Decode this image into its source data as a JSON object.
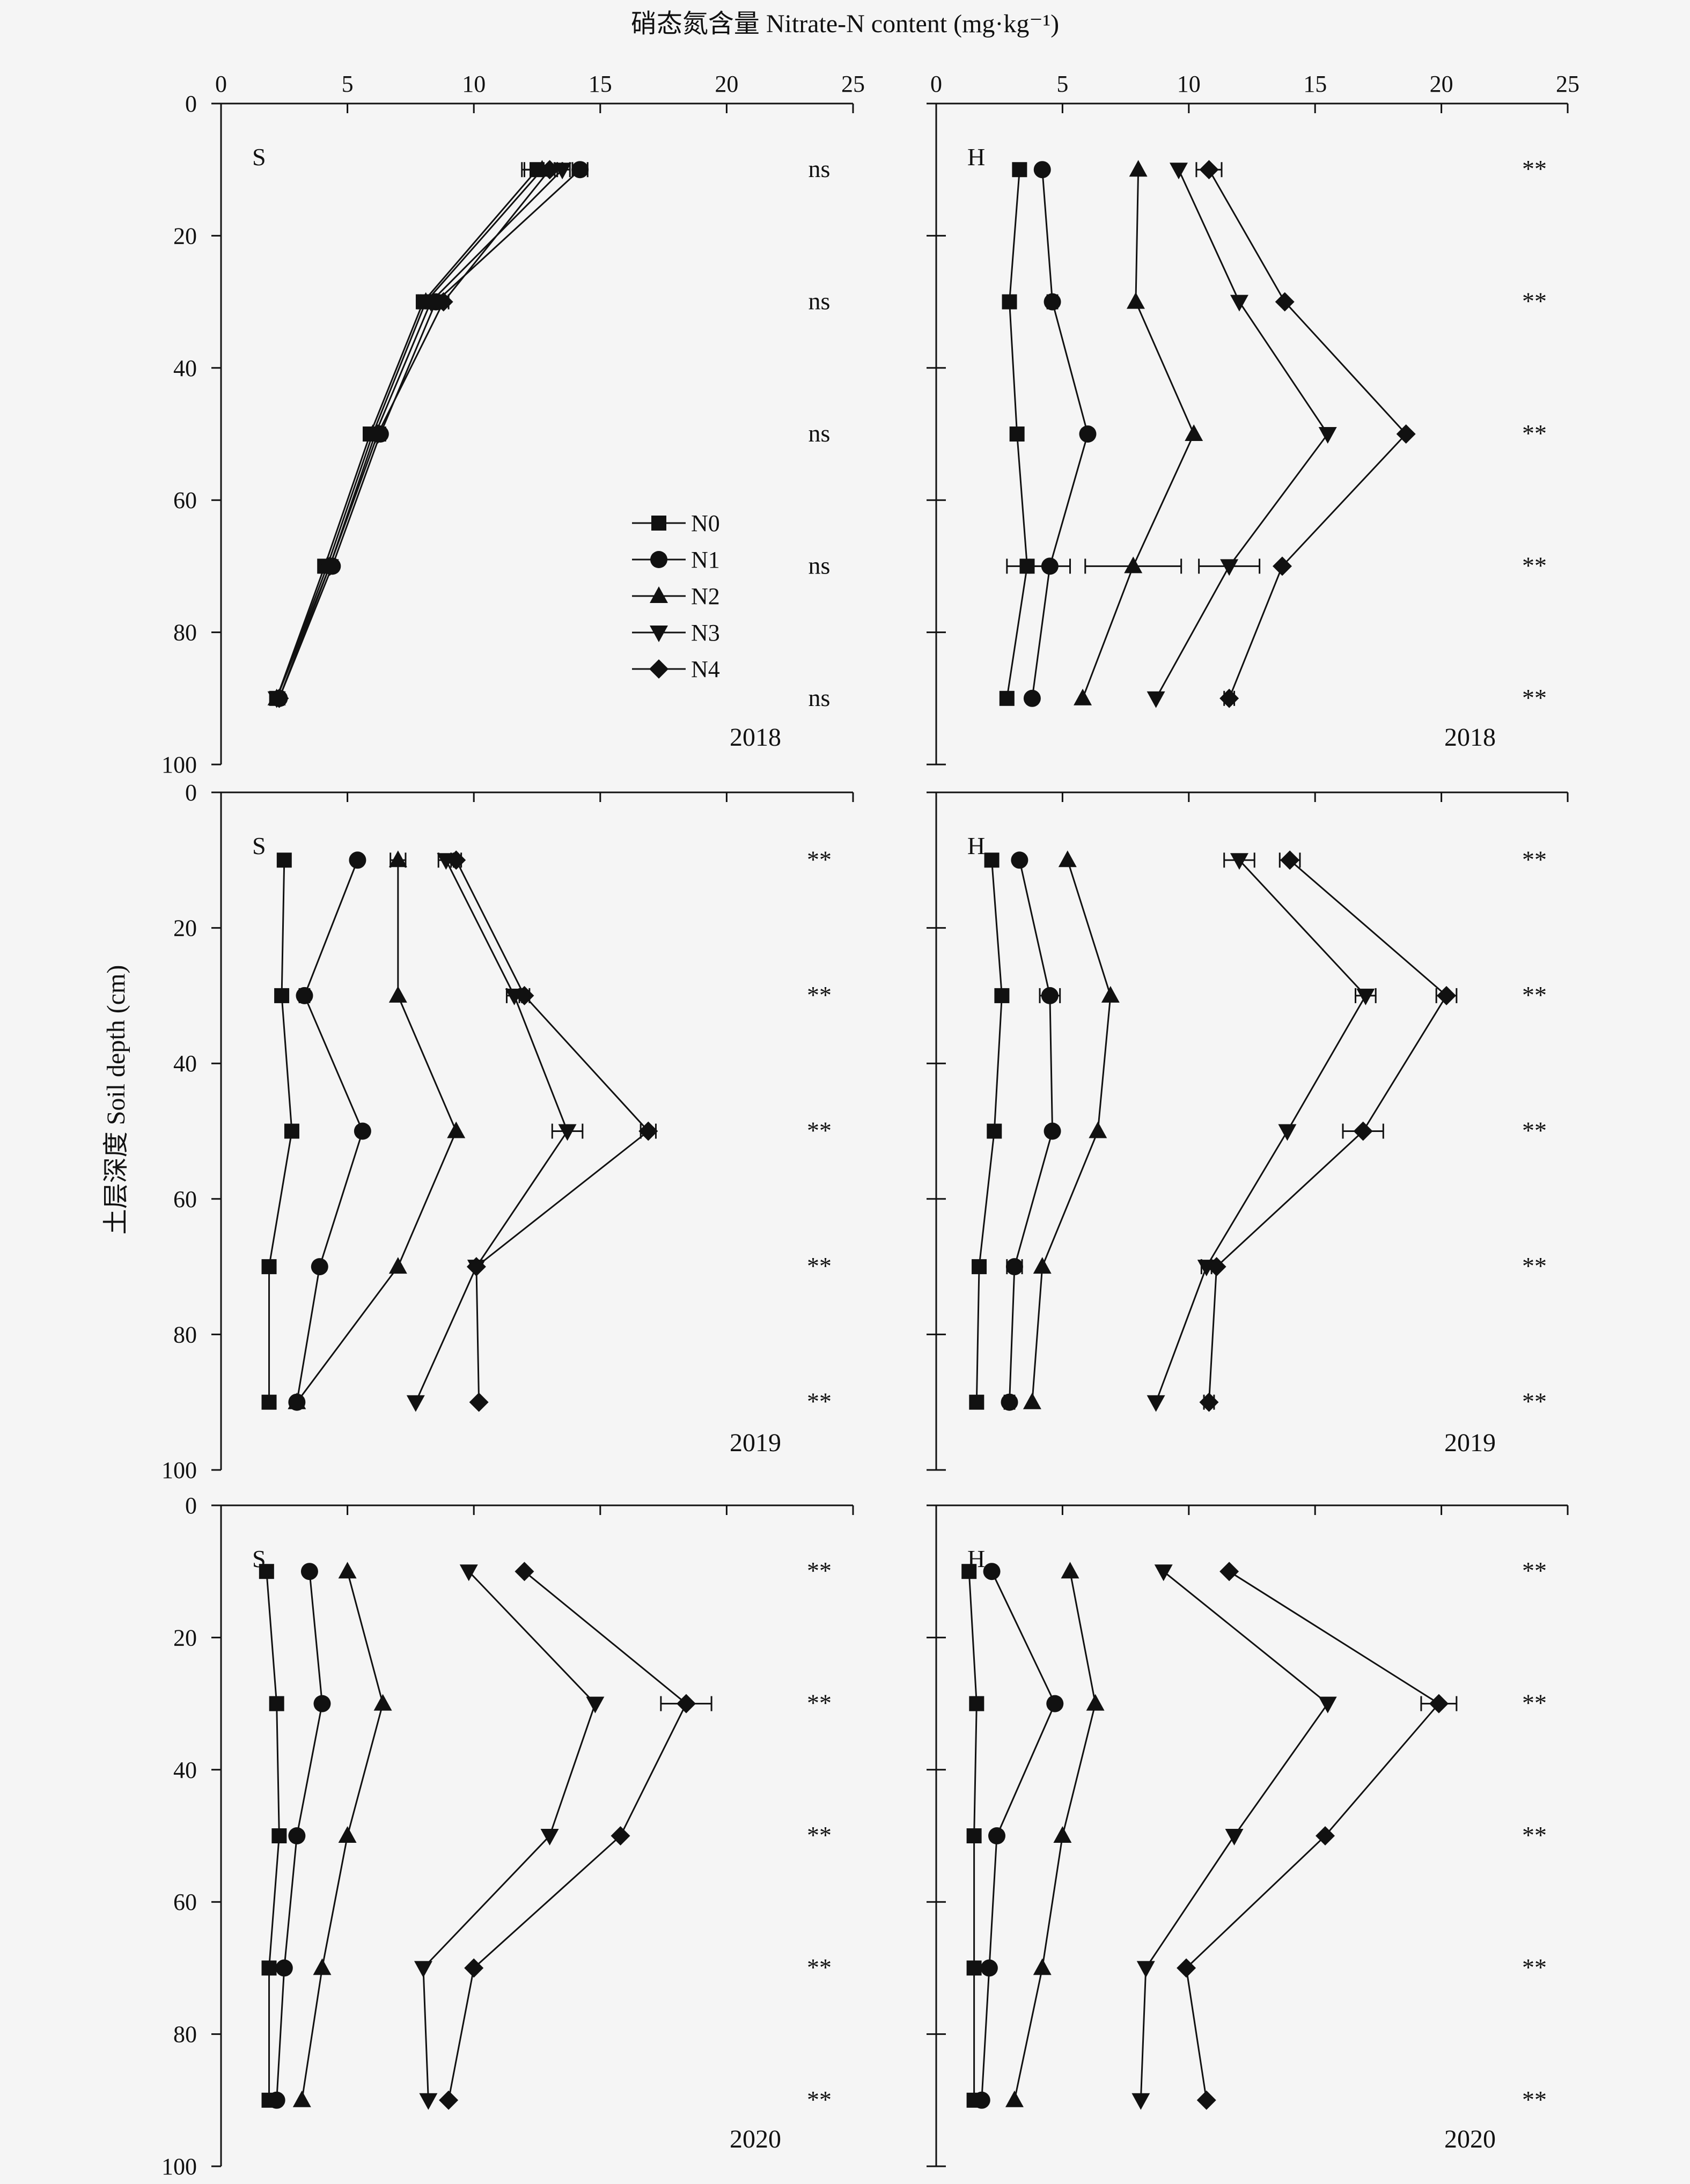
{
  "x_axis_title": "硝态氮含量 Nitrate-N content (mg·kg⁻¹)",
  "y_axis_title": "土层深度 Soil depth (cm)",
  "x_ticks": [
    "0",
    "5",
    "10",
    "15",
    "20",
    "25"
  ],
  "y_ticks": [
    "0",
    "20",
    "40",
    "60",
    "80",
    "100"
  ],
  "legend": [
    "N0",
    "N1",
    "N2",
    "N3",
    "N4"
  ],
  "chart_data": [
    {
      "type": "line",
      "site": "S",
      "year": "2018",
      "xlim": [
        0,
        25
      ],
      "ylim": [
        0,
        100
      ],
      "depths": [
        10,
        30,
        50,
        70,
        90
      ],
      "significance": [
        "ns",
        "ns",
        "ns",
        "ns",
        "ns"
      ],
      "series": [
        {
          "name": "N0",
          "values": [
            12.5,
            8.0,
            5.9,
            4.1,
            2.2
          ],
          "errors": [
            0.5,
            0.2,
            0.2,
            0.1,
            0.1
          ]
        },
        {
          "name": "N1",
          "values": [
            14.2,
            8.5,
            6.3,
            4.4,
            2.3
          ],
          "errors": [
            0.3,
            0.2,
            0.2,
            0.1,
            0.1
          ]
        },
        {
          "name": "N2",
          "values": [
            12.7,
            8.1,
            6.0,
            4.2,
            2.2
          ],
          "errors": [
            0.8,
            0.2,
            0.2,
            0.1,
            0.1
          ]
        },
        {
          "name": "N3",
          "values": [
            13.5,
            8.3,
            6.1,
            4.3,
            2.2
          ],
          "errors": [
            0.3,
            0.2,
            0.2,
            0.1,
            0.1
          ]
        },
        {
          "name": "N4",
          "values": [
            13.0,
            8.8,
            6.2,
            4.3,
            2.3
          ],
          "errors": [
            0.3,
            0.2,
            0.2,
            0.1,
            0.1
          ]
        }
      ]
    },
    {
      "type": "line",
      "site": "H",
      "year": "2018",
      "xlim": [
        0,
        25
      ],
      "ylim": [
        0,
        100
      ],
      "depths": [
        10,
        30,
        50,
        70,
        90
      ],
      "significance": [
        "**",
        "**",
        "**",
        "**",
        "**"
      ],
      "series": [
        {
          "name": "N0",
          "values": [
            3.3,
            2.9,
            3.2,
            3.6,
            2.8
          ],
          "errors": [
            0.1,
            0.1,
            0.1,
            0.8,
            0.1
          ]
        },
        {
          "name": "N1",
          "values": [
            4.2,
            4.6,
            6.0,
            4.5,
            3.8
          ],
          "errors": [
            0.1,
            0.2,
            0.1,
            0.8,
            0.1
          ]
        },
        {
          "name": "N2",
          "values": [
            8.0,
            7.9,
            10.2,
            7.8,
            5.8
          ],
          "errors": [
            0.1,
            0.1,
            0.1,
            1.9,
            0.1
          ]
        },
        {
          "name": "N3",
          "values": [
            9.6,
            12.0,
            15.5,
            11.6,
            8.7
          ],
          "errors": [
            0.1,
            0.1,
            0.1,
            1.2,
            0.1
          ]
        },
        {
          "name": "N4",
          "values": [
            10.8,
            13.8,
            18.6,
            13.7,
            11.6
          ],
          "errors": [
            0.5,
            0.1,
            0.1,
            0.1,
            0.2
          ]
        }
      ]
    },
    {
      "type": "line",
      "site": "S",
      "year": "2019",
      "xlim": [
        0,
        25
      ],
      "ylim": [
        0,
        100
      ],
      "depths": [
        10,
        30,
        50,
        70,
        90
      ],
      "significance": [
        "**",
        "**",
        "**",
        "**",
        "**"
      ],
      "series": [
        {
          "name": "N0",
          "values": [
            2.5,
            2.4,
            2.8,
            1.9,
            1.9
          ],
          "errors": [
            0.1,
            0.1,
            0.1,
            0.1,
            0.1
          ]
        },
        {
          "name": "N1",
          "values": [
            5.4,
            3.3,
            5.6,
            3.9,
            3.0
          ],
          "errors": [
            0.1,
            0.2,
            0.1,
            0.1,
            0.1
          ]
        },
        {
          "name": "N2",
          "values": [
            7.0,
            7.0,
            9.3,
            7.0,
            3.0
          ],
          "errors": [
            0.3,
            0.1,
            0.1,
            0.1,
            0.1
          ]
        },
        {
          "name": "N3",
          "values": [
            8.9,
            11.6,
            13.7,
            10.1,
            7.7
          ],
          "errors": [
            0.3,
            0.3,
            0.6,
            0.1,
            0.1
          ]
        },
        {
          "name": "N4",
          "values": [
            9.3,
            12.0,
            16.9,
            10.1,
            10.2
          ],
          "errors": [
            0.2,
            0.2,
            0.3,
            0.1,
            0.1
          ]
        }
      ]
    },
    {
      "type": "line",
      "site": "H",
      "year": "2019",
      "xlim": [
        0,
        25
      ],
      "ylim": [
        0,
        100
      ],
      "depths": [
        10,
        30,
        50,
        70,
        90
      ],
      "significance": [
        "**",
        "**",
        "**",
        "**",
        "**"
      ],
      "series": [
        {
          "name": "N0",
          "values": [
            2.2,
            2.6,
            2.3,
            1.7,
            1.6
          ],
          "errors": [
            0.1,
            0.1,
            0.1,
            0.1,
            0.1
          ]
        },
        {
          "name": "N1",
          "values": [
            3.3,
            4.5,
            4.6,
            3.1,
            2.9
          ],
          "errors": [
            0.1,
            0.4,
            0.1,
            0.3,
            0.2
          ]
        },
        {
          "name": "N2",
          "values": [
            5.2,
            6.9,
            6.4,
            4.2,
            3.8
          ],
          "errors": [
            0.1,
            0.1,
            0.1,
            0.1,
            0.1
          ]
        },
        {
          "name": "N3",
          "values": [
            12.0,
            17.0,
            13.9,
            10.7,
            8.7
          ],
          "errors": [
            0.6,
            0.4,
            0.1,
            0.2,
            0.1
          ]
        },
        {
          "name": "N4",
          "values": [
            14.0,
            20.2,
            16.9,
            11.1,
            10.8
          ],
          "errors": [
            0.4,
            0.4,
            0.8,
            0.1,
            0.2
          ]
        }
      ]
    },
    {
      "type": "line",
      "site": "S",
      "year": "2020",
      "xlim": [
        0,
        25
      ],
      "ylim": [
        0,
        100
      ],
      "depths": [
        10,
        30,
        50,
        70,
        90
      ],
      "significance": [
        "**",
        "**",
        "**",
        "**",
        "**"
      ],
      "series": [
        {
          "name": "N0",
          "values": [
            1.8,
            2.2,
            2.3,
            1.9,
            1.9
          ],
          "errors": [
            0.1,
            0.1,
            0.1,
            0.1,
            0.1
          ]
        },
        {
          "name": "N1",
          "values": [
            3.5,
            4.0,
            3.0,
            2.5,
            2.2
          ],
          "errors": [
            0.1,
            0.1,
            0.1,
            0.1,
            0.1
          ]
        },
        {
          "name": "N2",
          "values": [
            5.0,
            6.4,
            5.0,
            4.0,
            3.2
          ],
          "errors": [
            0.1,
            0.1,
            0.1,
            0.1,
            0.1
          ]
        },
        {
          "name": "N3",
          "values": [
            9.8,
            14.8,
            13.0,
            8.0,
            8.2
          ],
          "errors": [
            0.1,
            0.1,
            0.1,
            0.1,
            0.1
          ]
        },
        {
          "name": "N4",
          "values": [
            12.0,
            18.4,
            15.8,
            10.0,
            9.0
          ],
          "errors": [
            0.1,
            1.0,
            0.1,
            0.1,
            0.1
          ]
        }
      ]
    },
    {
      "type": "line",
      "site": "H",
      "year": "2020",
      "xlim": [
        0,
        25
      ],
      "ylim": [
        0,
        100
      ],
      "depths": [
        10,
        30,
        50,
        70,
        90
      ],
      "significance": [
        "**",
        "**",
        "**",
        "**",
        "**"
      ],
      "series": [
        {
          "name": "N0",
          "values": [
            1.3,
            1.6,
            1.5,
            1.5,
            1.5
          ],
          "errors": [
            0.1,
            0.1,
            0.1,
            0.1,
            0.1
          ]
        },
        {
          "name": "N1",
          "values": [
            2.2,
            4.7,
            2.4,
            2.1,
            1.8
          ],
          "errors": [
            0.1,
            0.1,
            0.1,
            0.1,
            0.1
          ]
        },
        {
          "name": "N2",
          "values": [
            5.3,
            6.3,
            5.0,
            4.2,
            3.1
          ],
          "errors": [
            0.1,
            0.1,
            0.1,
            0.1,
            0.1
          ]
        },
        {
          "name": "N3",
          "values": [
            9.0,
            15.5,
            11.8,
            8.3,
            8.1
          ],
          "errors": [
            0.1,
            0.1,
            0.1,
            0.1,
            0.1
          ]
        },
        {
          "name": "N4",
          "values": [
            11.6,
            19.9,
            15.4,
            9.9,
            10.7
          ],
          "errors": [
            0.1,
            0.7,
            0.1,
            0.1,
            0.1
          ]
        }
      ]
    }
  ]
}
